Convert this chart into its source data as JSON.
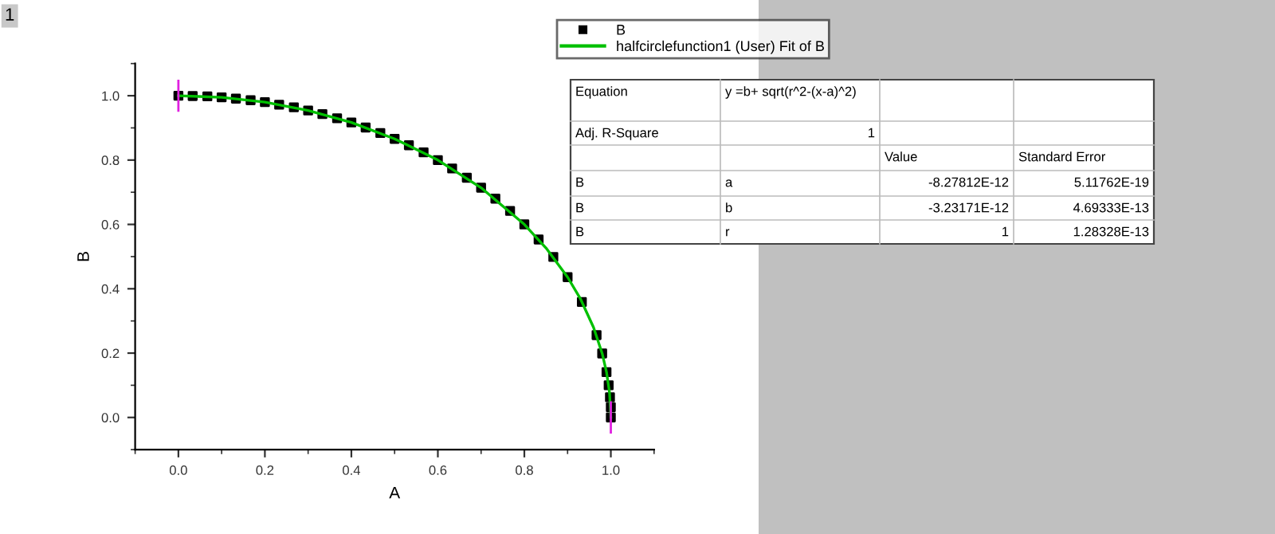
{
  "chart_data": {
    "type": "scatter",
    "xlabel": "A",
    "ylabel": "B",
    "xlim": [
      -0.1,
      1.1
    ],
    "ylim": [
      -0.1,
      1.1
    ],
    "xticks": [
      {
        "value": 0,
        "label": "0.0"
      },
      0.2,
      0.4,
      0.6,
      0.8,
      {
        "value": 1,
        "label": "1.0"
      }
    ],
    "yticks": [
      {
        "value": 0,
        "label": "0.0"
      },
      0.2,
      0.4,
      0.6,
      0.8,
      {
        "value": 1,
        "label": "1.0"
      }
    ],
    "grid": false,
    "legend": "top right",
    "series": [
      {
        "name": "B",
        "marker": "square",
        "color": "#000000",
        "x": [
          0,
          0.033,
          0.067,
          0.1,
          0.133,
          0.167,
          0.2,
          0.233,
          0.267,
          0.3,
          0.333,
          0.367,
          0.4,
          0.433,
          0.467,
          0.5,
          0.533,
          0.567,
          0.6,
          0.633,
          0.667,
          0.7,
          0.733,
          0.767,
          0.8,
          0.833,
          0.867,
          0.9,
          0.933,
          0.967,
          0.98,
          0.99,
          0.995,
          0.998,
          1.0,
          1.0
        ],
        "values": [
          1.0,
          0.999,
          0.998,
          0.995,
          0.991,
          0.986,
          0.98,
          0.972,
          0.964,
          0.954,
          0.943,
          0.93,
          0.917,
          0.901,
          0.884,
          0.866,
          0.846,
          0.824,
          0.8,
          0.774,
          0.745,
          0.714,
          0.68,
          0.642,
          0.6,
          0.553,
          0.499,
          0.436,
          0.359,
          0.256,
          0.199,
          0.141,
          0.1,
          0.063,
          0.032,
          0.0
        ],
        "errors": [
          0.05,
          null,
          null,
          null,
          null,
          null,
          null,
          null,
          null,
          null,
          null,
          null,
          null,
          null,
          null,
          null,
          null,
          null,
          null,
          null,
          null,
          null,
          null,
          null,
          null,
          null,
          null,
          null,
          null,
          null,
          null,
          null,
          null,
          null,
          null,
          0.05
        ]
      },
      {
        "name": "halfcirclefunction1 (User) Fit of B",
        "type": "line",
        "color": "#00c000",
        "line_style": "solid",
        "x": [
          0,
          0.1,
          0.2,
          0.3,
          0.4,
          0.5,
          0.6,
          0.7,
          0.8,
          0.85,
          0.9,
          0.93,
          0.96,
          0.98,
          0.99,
          0.997,
          1.0
        ],
        "values": [
          1.0,
          0.995,
          0.98,
          0.954,
          0.917,
          0.866,
          0.8,
          0.714,
          0.6,
          0.527,
          0.436,
          0.368,
          0.28,
          0.199,
          0.141,
          0.077,
          0.0
        ]
      }
    ],
    "annotations": [
      "1",
      "Equation",
      "y =b+ sqrt(r^2-(x-a)^2)",
      "Adj. R-Square",
      "1",
      "Value",
      "Standard Error",
      "B",
      "a",
      "-8.27812E-12",
      "5.11762E-19",
      "B",
      "b",
      "-3.23171E-12",
      "4.69333E-13",
      "B",
      "r",
      "1",
      "1.28328E-13"
    ]
  }
}
